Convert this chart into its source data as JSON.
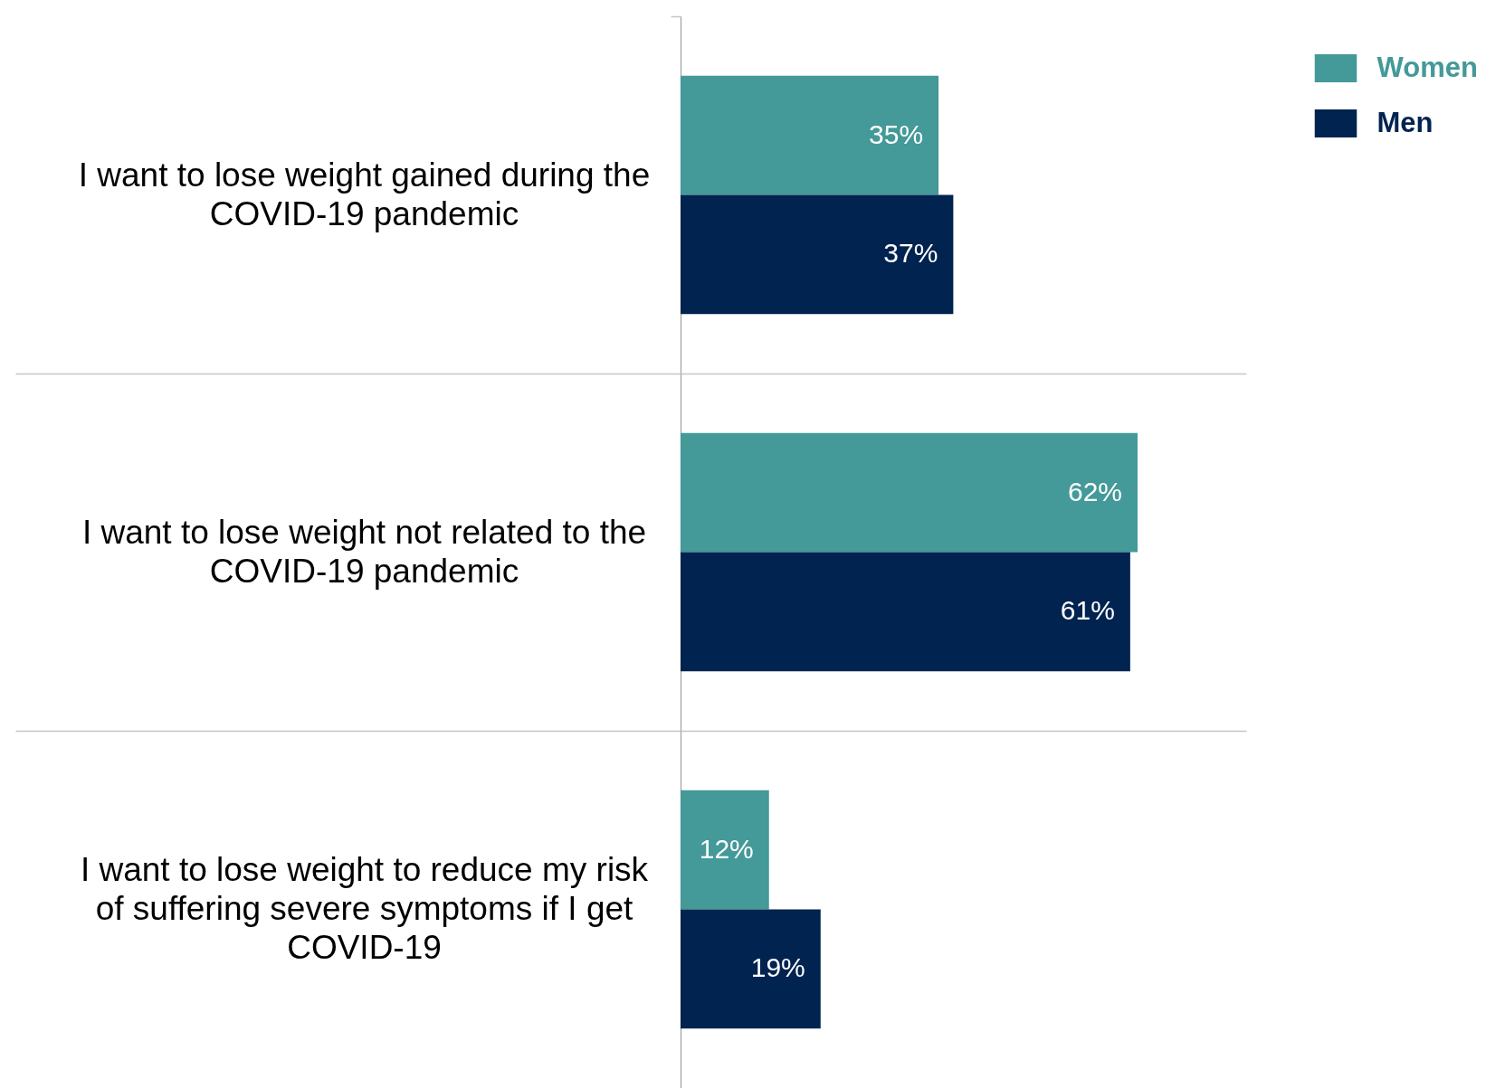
{
  "chart_data": {
    "type": "bar",
    "orientation": "horizontal",
    "categories": [
      "I want to lose weight gained during the COVID-19 pandemic",
      "I want to lose weight not related to the COVID-19 pandemic",
      "I want to lose weight to reduce my risk of suffering severe symptoms if I get COVID-19"
    ],
    "series": [
      {
        "name": "Women",
        "color": "#449999",
        "values": [
          35,
          62,
          12
        ],
        "value_labels": [
          "35%",
          "62%",
          "12%"
        ]
      },
      {
        "name": "Men",
        "color": "#002350",
        "values": [
          37,
          61,
          19
        ],
        "value_labels": [
          "37%",
          "61%",
          "19%"
        ]
      }
    ],
    "legend": "top right"
  }
}
